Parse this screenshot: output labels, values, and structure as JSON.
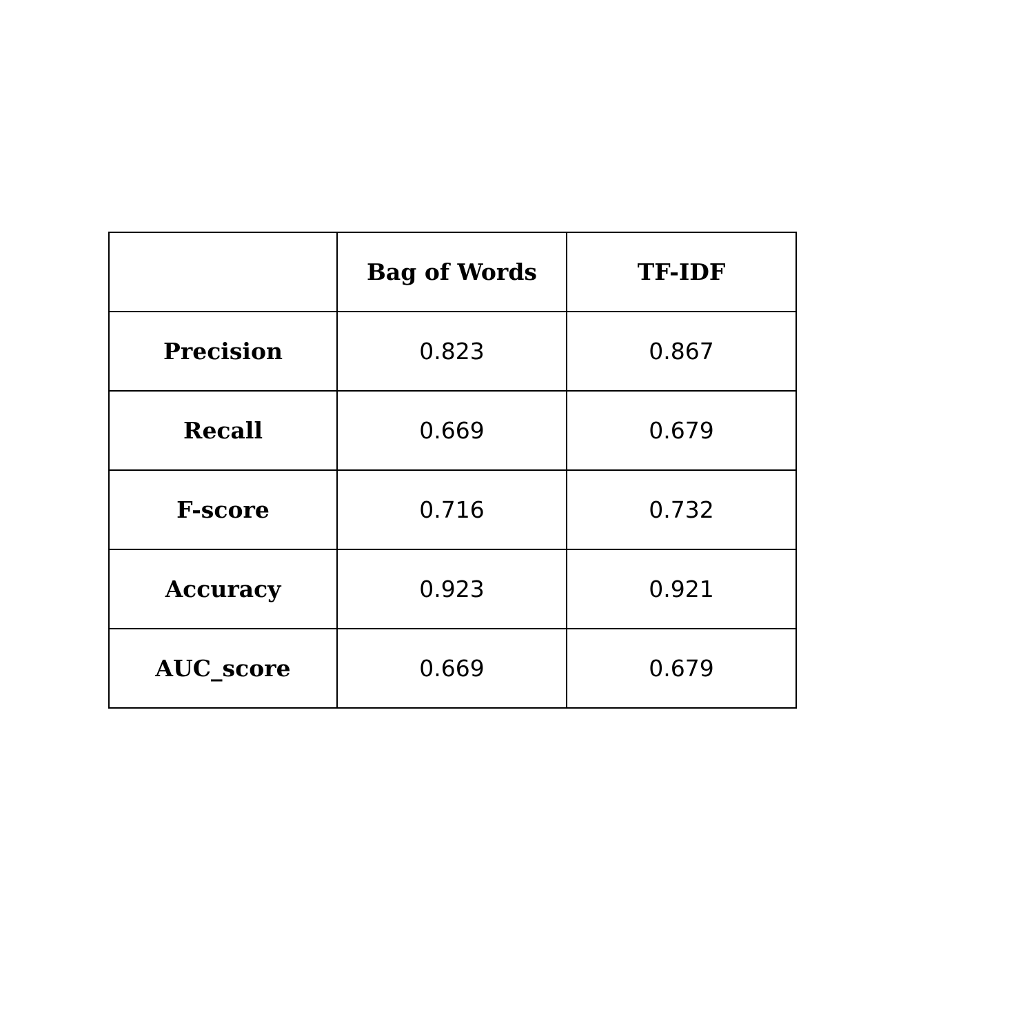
{
  "table": {
    "columns": [
      "",
      "Bag of Words",
      "TF-IDF"
    ],
    "rows": [
      {
        "label": "Precision",
        "values": [
          "0.823",
          "0.867"
        ]
      },
      {
        "label": "Recall",
        "values": [
          "0.669",
          "0.679"
        ]
      },
      {
        "label": "F-score",
        "values": [
          "0.716",
          "0.732"
        ]
      },
      {
        "label": "Accuracy",
        "values": [
          "0.923",
          "0.921"
        ]
      },
      {
        "label": "AUC_score",
        "values": [
          "0.669",
          "0.679"
        ]
      }
    ]
  }
}
